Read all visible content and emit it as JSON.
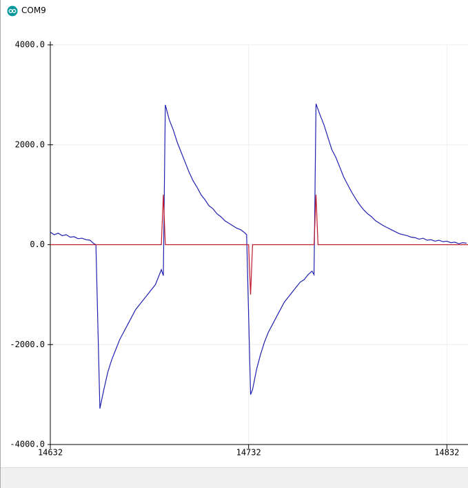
{
  "window": {
    "title": "COM9"
  },
  "chart_data": {
    "type": "line",
    "xlim": [
      14632,
      14843
    ],
    "xticks": [
      14632,
      14732,
      14832
    ],
    "ylim": [
      -4000,
      4000
    ],
    "yticks": [
      {
        "value": -4000,
        "label": "-4000.0"
      },
      {
        "value": -2000,
        "label": "-2000.0"
      },
      {
        "value": 0,
        "label": "0.0"
      },
      {
        "value": 2000,
        "label": "2000.0"
      },
      {
        "value": 4000,
        "label": "4000.0"
      }
    ],
    "grid": true,
    "series": [
      {
        "color": "#1f1fb0",
        "x": [
          14632,
          14634,
          14636,
          14638,
          14640,
          14642,
          14644,
          14646,
          14648,
          14650,
          14652,
          14654,
          14655,
          14657,
          14659,
          14661,
          14663,
          14665,
          14667,
          14669,
          14671,
          14673,
          14675,
          14677,
          14679,
          14681,
          14683,
          14685,
          14687,
          14688,
          14689,
          14690,
          14692,
          14694,
          14696,
          14698,
          14700,
          14702,
          14704,
          14706,
          14708,
          14710,
          14712,
          14714,
          14716,
          14718,
          14720,
          14722,
          14724,
          14726,
          14728,
          14730,
          14731,
          14733,
          14734,
          14736,
          14738,
          14740,
          14742,
          14744,
          14746,
          14748,
          14750,
          14752,
          14754,
          14756,
          14758,
          14760,
          14762,
          14764,
          14765,
          14766,
          14768,
          14770,
          14772,
          14774,
          14776,
          14778,
          14780,
          14782,
          14784,
          14786,
          14788,
          14790,
          14792,
          14794,
          14796,
          14798,
          14800,
          14802,
          14804,
          14806,
          14808,
          14810,
          14812,
          14814,
          14816,
          14818,
          14820,
          14822,
          14824,
          14826,
          14828,
          14830,
          14832,
          14834,
          14836,
          14838,
          14840,
          14842
        ],
        "values": [
          250,
          200,
          230,
          180,
          200,
          150,
          160,
          120,
          130,
          100,
          90,
          20,
          0,
          -3280,
          -2900,
          -2550,
          -2300,
          -2100,
          -1900,
          -1750,
          -1600,
          -1450,
          -1300,
          -1200,
          -1100,
          -1000,
          -900,
          -800,
          -600,
          -500,
          -620,
          2800,
          2500,
          2300,
          2050,
          1850,
          1650,
          1450,
          1280,
          1150,
          1000,
          900,
          780,
          720,
          620,
          560,
          480,
          430,
          380,
          330,
          300,
          240,
          200,
          -3000,
          -2900,
          -2500,
          -2200,
          -1950,
          -1750,
          -1600,
          -1450,
          -1300,
          -1150,
          -1050,
          -950,
          -850,
          -750,
          -700,
          -600,
          -530,
          -600,
          2820,
          2600,
          2400,
          2150,
          1900,
          1750,
          1550,
          1350,
          1200,
          1050,
          920,
          800,
          700,
          620,
          560,
          480,
          430,
          380,
          340,
          300,
          260,
          220,
          200,
          180,
          150,
          140,
          110,
          130,
          90,
          100,
          70,
          90,
          60,
          70,
          40,
          50,
          20,
          40,
          30
        ]
      },
      {
        "color": "#c0182a",
        "x": [
          14632,
          14688,
          14689,
          14690,
          14732,
          14733,
          14734,
          14765,
          14766,
          14767,
          14843
        ],
        "values": [
          0,
          0,
          1000,
          0,
          0,
          -1000,
          0,
          0,
          1000,
          0,
          0
        ]
      }
    ]
  }
}
